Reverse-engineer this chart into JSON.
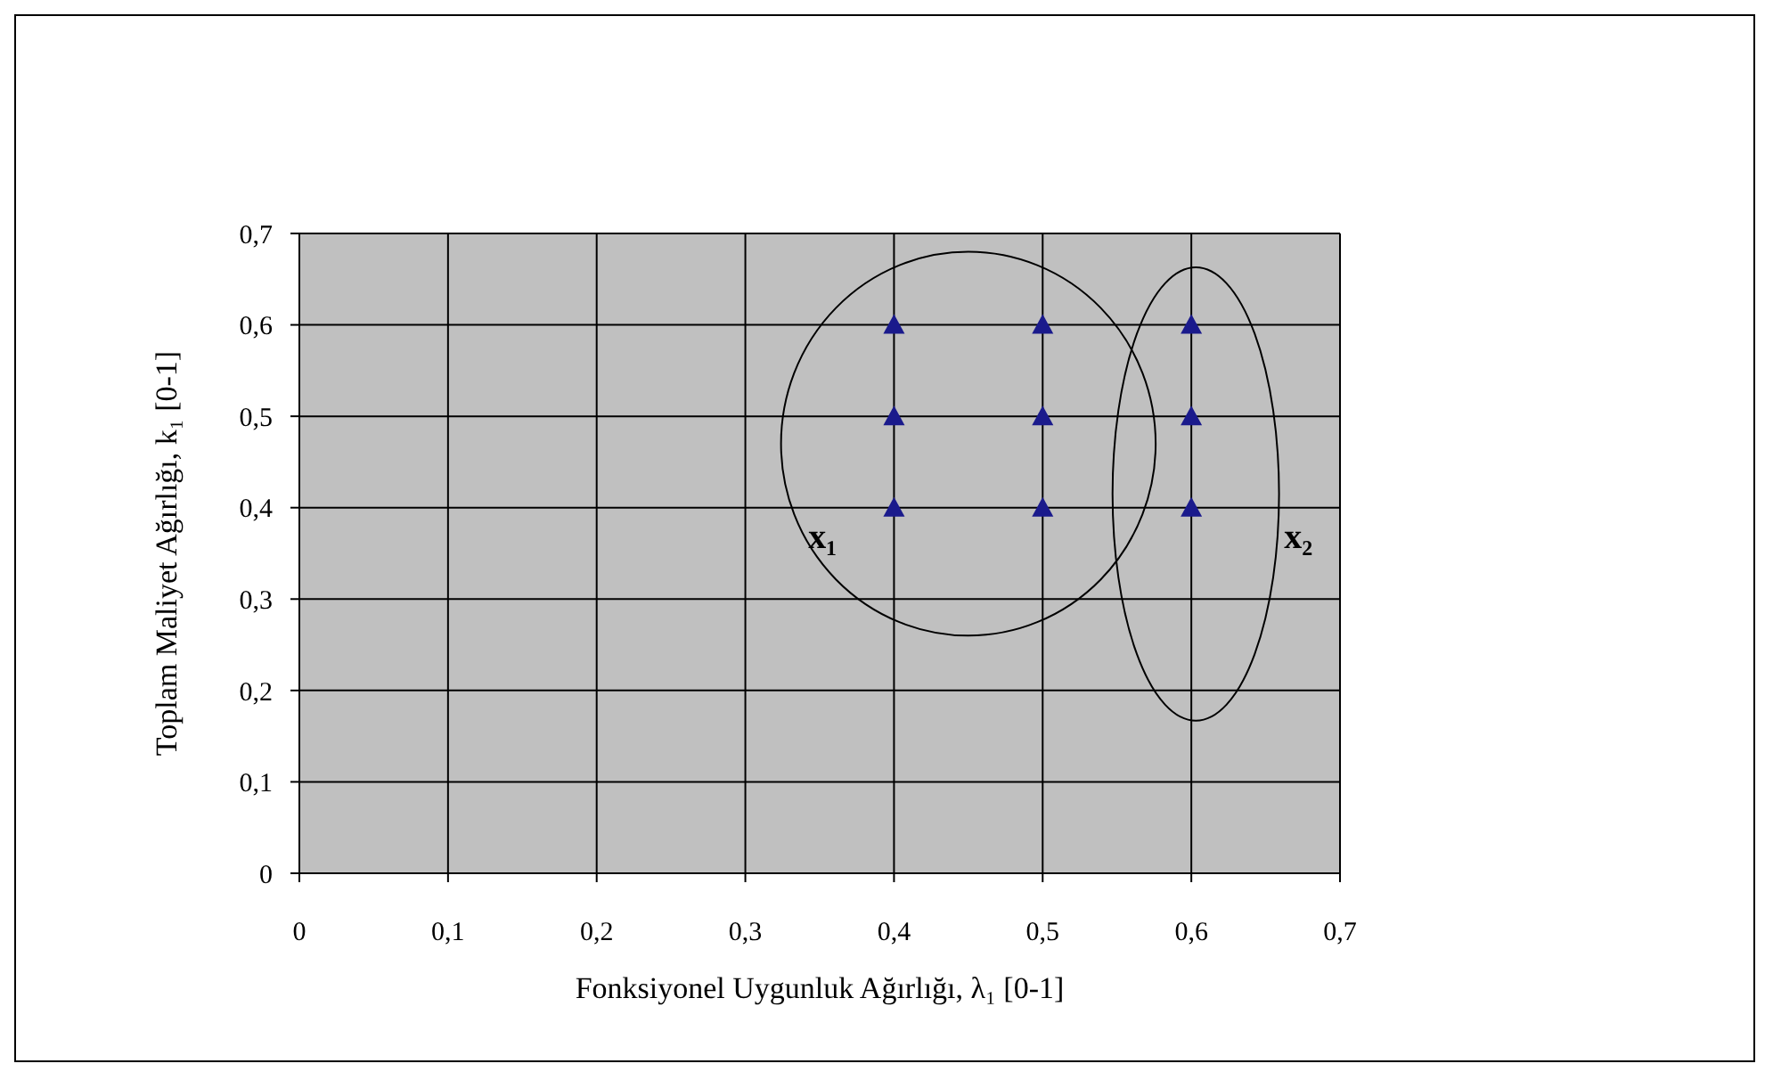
{
  "chart_data": {
    "type": "scatter",
    "xlabel": "Fonksiyonel Uygunluk Ağırlığı, λ₁ [0-1]",
    "ylabel": "Toplam Maliyet Ağırlığı, k₁ [0-1]",
    "series": [
      {
        "color": "#1a1a8c",
        "x": [
          0.4,
          0.4,
          0.4,
          0.5,
          0.5,
          0.5,
          0.6,
          0.6,
          0.6
        ],
        "values": [
          0.4,
          0.5,
          0.6,
          0.4,
          0.5,
          0.6,
          0.4,
          0.5,
          0.6
        ]
      }
    ],
    "marker": "triangle",
    "grid": true,
    "legend": false,
    "xlim": [
      0,
      0.7
    ],
    "ylim": [
      0,
      0.7
    ],
    "xticks": [
      {
        "value": 0,
        "label": "0"
      },
      {
        "value": 0.1,
        "label": "0,1"
      },
      {
        "value": 0.2,
        "label": "0,2"
      },
      {
        "value": 0.3,
        "label": "0,3"
      },
      {
        "value": 0.4,
        "label": "0,4"
      },
      {
        "value": 0.5,
        "label": "0,5"
      },
      {
        "value": 0.6,
        "label": "0,6"
      },
      {
        "value": 0.7,
        "label": "0,7"
      }
    ],
    "yticks": [
      {
        "value": 0,
        "label": "0"
      },
      {
        "value": 0.1,
        "label": "0,1"
      },
      {
        "value": 0.2,
        "label": "0,2"
      },
      {
        "value": 0.3,
        "label": "0,3"
      },
      {
        "value": 0.4,
        "label": "0,4"
      },
      {
        "value": 0.5,
        "label": "0,5"
      },
      {
        "value": 0.6,
        "label": "0,6"
      },
      {
        "value": 0.7,
        "label": "0,7"
      }
    ],
    "annotations": [
      "x₁",
      "x₂"
    ]
  }
}
